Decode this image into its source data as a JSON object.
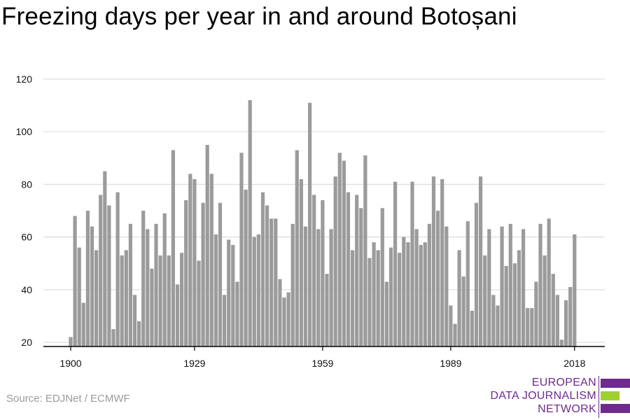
{
  "title": "Freezing days per year in and around Botoșani",
  "source": "Source: EDJNet / ECMWF",
  "logo": {
    "lines": [
      "EUROPEAN",
      "DATA JOURNALISM",
      "NETWORK"
    ],
    "colors": {
      "purple": "#6e2a8c",
      "green": "#9ed12f"
    }
  },
  "colors": {
    "bar": "#9b9b9b",
    "grid": "#dddddd",
    "axis": "#000000"
  },
  "chart_data": {
    "type": "bar",
    "title": "Freezing days per year in and around Botoșani",
    "xlabel": "",
    "ylabel": "",
    "x_ticks": [
      "1900",
      "1929",
      "1959",
      "1989",
      "2018"
    ],
    "y_ticks": [
      20,
      40,
      60,
      80,
      100,
      120
    ],
    "ylim": [
      20,
      120
    ],
    "grid": true,
    "start_year": 1900,
    "end_year": 2018,
    "values": [
      22,
      68,
      56,
      35,
      70,
      64,
      55,
      76,
      85,
      72,
      25,
      77,
      53,
      55,
      65,
      38,
      28,
      70,
      63,
      48,
      65,
      53,
      69,
      53,
      93,
      42,
      54,
      74,
      84,
      82,
      51,
      73,
      95,
      84,
      61,
      73,
      38,
      59,
      57,
      43,
      92,
      78,
      112,
      60,
      61,
      77,
      72,
      67,
      67,
      44,
      37,
      39,
      65,
      93,
      82,
      64,
      111,
      76,
      63,
      74,
      46,
      63,
      83,
      92,
      89,
      77,
      55,
      76,
      71,
      91,
      52,
      58,
      55,
      71,
      43,
      56,
      81,
      54,
      60,
      58,
      81,
      63,
      57,
      58,
      65,
      83,
      70,
      82,
      64,
      34,
      27,
      55,
      45,
      66,
      32,
      73,
      83,
      53,
      63,
      38,
      34,
      64,
      49,
      65,
      50,
      55,
      63,
      33,
      33,
      43,
      65,
      53,
      67,
      46,
      38,
      21,
      36,
      41,
      61
    ]
  }
}
